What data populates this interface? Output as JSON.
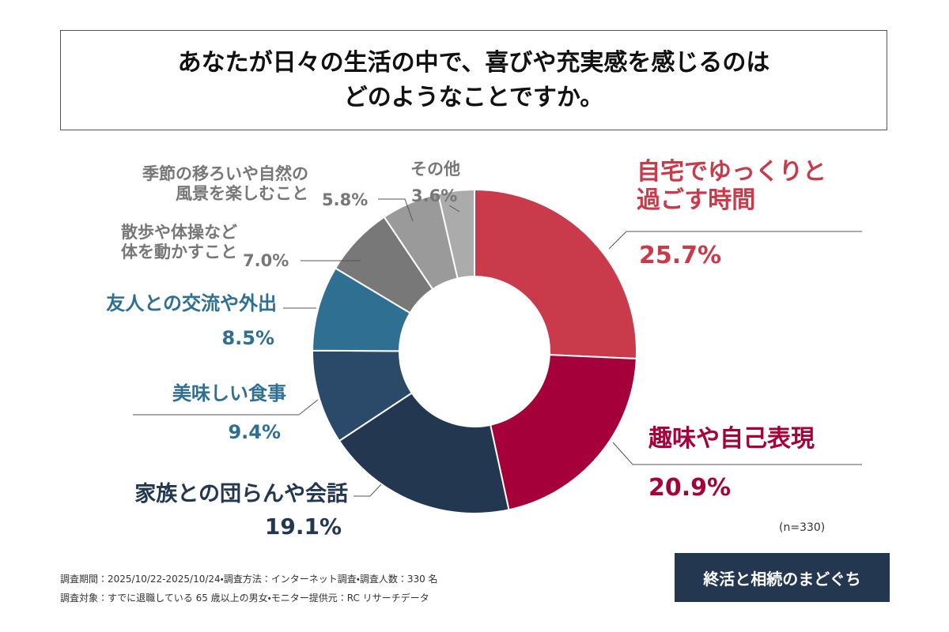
{
  "chart_data": {
    "type": "donut",
    "title": "あなたが日々の生活の中で、喜びや充実感を感じるのは\nどのようなことですか。",
    "categories": [
      "自宅でゆっくりと\n過ごす時間",
      "趣味や自己表現",
      "家族との団らんや会話",
      "美味しい食事",
      "友人との交流や外出",
      "散歩や体操など\n体を動かすこと",
      "季節の移ろいや自然の\n風景を楽しむこと",
      "その他"
    ],
    "values": [
      25.7,
      20.9,
      19.1,
      9.4,
      8.5,
      7.0,
      5.8,
      3.6
    ],
    "value_labels": [
      "25.7%",
      "20.9%",
      "19.1%",
      "9.4%",
      "8.5%",
      "7.0%",
      "5.8%",
      "3.6%"
    ],
    "colors": [
      "#c93a4a",
      "#a5003a",
      "#233850",
      "#2b4a6a",
      "#2f6f91",
      "#787878",
      "#9a9a9a",
      "#ababab"
    ],
    "label_colors": [
      "#c93a4a",
      "#a5003a",
      "#233850",
      "#2f6f91",
      "#2f6f91",
      "#777777",
      "#777777",
      "#777777"
    ],
    "note": "(n=330)",
    "footer": [
      "調査期間：2025/10/22-2025/10/24・調査方法：インターネット調査・調査人数：330 名",
      "調査対象：すでに退職している 65 歳以上の男女・モニター提供元：RC リサーチデータ"
    ],
    "logo": "終活と相続のまどぐち"
  }
}
